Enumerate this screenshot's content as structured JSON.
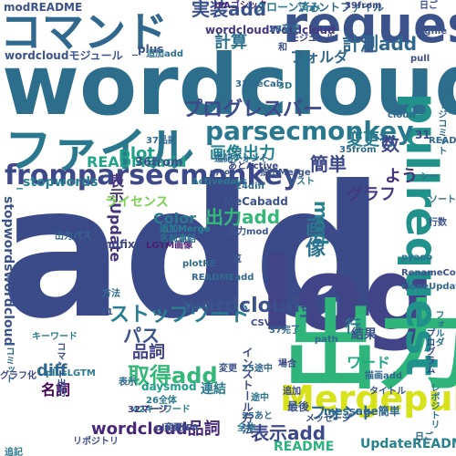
{
  "words": [
    {
      "text": "add",
      "color": "#3b4b8a"
    },
    {
      "text": "wordcloud",
      "color": "#2c6e8c"
    },
    {
      "text": "log",
      "color": "#414487"
    },
    {
      "text": "出力",
      "color": "#2fb47c"
    },
    {
      "text": "request",
      "color": "#3b528b"
    },
    {
      "text": "pullrequest",
      "color": "#21918c"
    },
    {
      "text": "ファイル",
      "color": "#2a788e"
    },
    {
      "text": "コマンド",
      "color": "#31688e"
    },
    {
      "text": "Mergepull",
      "color": "#d8e219"
    },
    {
      "text": "fromparsecmonkey",
      "color": "#3e4989"
    },
    {
      "text": "parsecmonkey",
      "color": "#2a788e"
    },
    {
      "text": "プログレスバー",
      "color": "#3e4a89"
    },
    {
      "text": "ストップワード",
      "color": "#287d8e"
    },
    {
      "text": "wordcloud_",
      "color": "#3b528b"
    },
    {
      "text": "取得add",
      "color": "#35b779"
    },
    {
      "text": "表示add",
      "color": "#3e4989"
    },
    {
      "text": "wordcloud品詞",
      "color": "#482878"
    },
    {
      "text": "画像出力",
      "color": "#26828e"
    },
    {
      "text": "実装add",
      "color": "#3b528b"
    },
    {
      "text": "計測add",
      "color": "#31688e"
    },
    {
      "text": "README",
      "color": "#2db27d"
    },
    {
      "text": "READMEadd",
      "color": "#20a386"
    },
    {
      "text": "modREADME",
      "color": "#3b528b"
    },
    {
      "text": "フォント",
      "color": "#31688e"
    },
    {
      "text": "変更行",
      "color": "#287d8e"
    },
    {
      "text": "グラフ",
      "color": "#443a83"
    },
    {
      "text": "簡単",
      "color": "#3e4989"
    },
    {
      "text": "plot",
      "color": "#1fa088"
    },
    {
      "text": "パス",
      "color": "#3b528b"
    },
    {
      "text": "品詞",
      "color": "#404688"
    },
    {
      "text": "名詞",
      "color": "#440154"
    },
    {
      "text": "diff",
      "color": "#31688e"
    },
    {
      "text": "mod",
      "color": "#26828e"
    },
    {
      "text": "数",
      "color": "#3e4a89"
    },
    {
      "text": "よう",
      "color": "#46337e"
    },
    {
      "text": "計算",
      "color": "#2c728e"
    },
    {
      "text": "画像",
      "color": "#2c728e"
    },
    {
      "text": "行",
      "color": "#2a788e"
    },
    {
      "text": "フォルダ",
      "color": "#31688e"
    },
    {
      "text": "表示Update",
      "color": "#46337e"
    },
    {
      "text": "出力add",
      "color": "#35b779"
    },
    {
      "text": "UpdateREADME",
      "color": "#26828e"
    },
    {
      "text": "Color",
      "color": "#2a788e"
    },
    {
      "text": "ワード",
      "color": "#22a884"
    },
    {
      "text": "_stopwords",
      "color": "#287d8e"
    },
    {
      "text": "stopwordswordcloud",
      "color": "#3b528b"
    },
    {
      "text": "wordcloudWordcloud",
      "color": "#453781"
    },
    {
      "text": "wordcloudモジュール",
      "color": "#3b528b"
    },
    {
      "text": "フォントファイル",
      "color": "#31688e"
    },
    {
      "text": "IPAゴシック",
      "color": "#472d7b"
    },
    {
      "text": "LGTM画像",
      "color": "#481f70"
    },
    {
      "text": "ライセンス",
      "color": "#7ad151"
    },
    {
      "text": "36from",
      "color": "#3b528b"
    },
    {
      "text": "Activedays",
      "color": "#2a788e"
    },
    {
      "text": "33MeCab",
      "color": "#31688e"
    },
    {
      "text": "抽出Merge",
      "color": "#3b528b"
    },
    {
      "text": "リスト",
      "color": "#2c728e"
    },
    {
      "text": "追加Merge",
      "color": "#26828e"
    },
    {
      "text": "キーワード",
      "color": "#2a788e"
    },
    {
      "text": "42キーワード",
      "color": "#287d8e"
    },
    {
      "text": "メッセージ",
      "color": "#3b528b"
    },
    {
      "text": "コミット",
      "color": "#31688e"
    },
    {
      "text": "plusLGTM",
      "color": "#2a788e"
    },
    {
      "text": "mdfix",
      "color": "#3e4989"
    },
    {
      "text": "MeCabadd",
      "color": "#3b528b"
    },
    {
      "text": "24diff",
      "color": "#31688e"
    },
    {
      "text": "名前連結",
      "color": "#2c728e"
    },
    {
      "text": "37完了",
      "color": "#31688e"
    },
    {
      "text": "完了名前",
      "color": "#3e4989"
    },
    {
      "text": "message簡単",
      "color": "#31688e"
    },
    {
      "text": "32マージ",
      "color": "#453781"
    },
    {
      "text": "変更IPA",
      "color": "#3b528b"
    },
    {
      "text": "daysmod",
      "color": "#1f9e89"
    },
    {
      "text": "26全体",
      "color": "#2a788e"
    },
    {
      "text": "25あと",
      "color": "#31688e"
    },
    {
      "text": "39from",
      "color": "#3e4989"
    },
    {
      "text": "日ご",
      "color": "#3b528b"
    },
    {
      "text": "クローン済み",
      "color": "#2a788e"
    },
    {
      "text": "_plus",
      "color": "#3b528b"
    },
    {
      "text": "28変更",
      "color": "#31688e"
    },
    {
      "text": "マージコミット",
      "color": "#31688e"
    },
    {
      "text": "インストール方法",
      "color": "#3e4989"
    },
    {
      "text": "結果",
      "color": "#3b528b"
    },
    {
      "text": "連結",
      "color": "#2a788e"
    },
    {
      "text": "方法",
      "color": "#31688e"
    },
    {
      "text": "追加",
      "color": "#3e4989"
    },
    {
      "text": "最後",
      "color": "#3b528b"
    },
    {
      "text": "途中",
      "color": "#2c728e"
    },
    {
      "text": "path",
      "color": "#31688e"
    },
    {
      "text": "CSV",
      "color": "#3e4989"
    },
    {
      "text": "pyaoo",
      "color": "#3b528b"
    },
    {
      "text": "3D",
      "color": "#2a788e"
    },
    {
      "text": "31",
      "color": "#3e4989"
    },
    {
      "text": "和",
      "color": "#3b528b"
    },
    {
      "text": "35from",
      "color": "#31688e"
    },
    {
      "text": "37品詞",
      "color": "#31688e"
    },
    {
      "text": "21",
      "color": "#3b528b"
    },
    {
      "text": "25途中",
      "color": "#31688e"
    },
    {
      "text": "モジュール",
      "color": "#3e4989"
    },
    {
      "text": "シー",
      "color": "#2c728e"
    },
    {
      "text": "コマンド出力",
      "color": "#3b528b"
    },
    {
      "text": "出力パス",
      "color": "#31688e"
    },
    {
      "text": "追加add",
      "color": "#2c728e"
    },
    {
      "text": "あとActive",
      "color": "#3e4989"
    },
    {
      "text": "cloud",
      "color": "#31688e"
    },
    {
      "text": "追記フォント",
      "color": "#31688e"
    },
    {
      "text": "一覧",
      "color": "#3b528b"
    },
    {
      "text": "全体",
      "color": "#2a788e"
    },
    {
      "text": "表示",
      "color": "#31688e"
    },
    {
      "text": "変更",
      "color": "#3b528b"
    },
    {
      "text": "場合",
      "color": "#3e4989"
    },
    {
      "text": "plotRE",
      "color": "#31688e"
    },
    {
      "text": "READMEadd",
      "color": "#31688e"
    },
    {
      "text": "プログラム",
      "color": "#3e4989"
    },
    {
      "text": "レポジトリ",
      "color": "#2c728e"
    },
    {
      "text": "タイトル",
      "color": "#3b528b"
    },
    {
      "text": "描画add",
      "color": "#31688e"
    },
    {
      "text": "グラフ化",
      "color": "#3e4989"
    },
    {
      "text": "追記",
      "color": "#2a788e"
    },
    {
      "text": "RenameColor",
      "color": "#3b528b"
    },
    {
      "text": "cloneUpdate",
      "color": "#31688e"
    },
    {
      "text": "リポジトリ",
      "color": "#3e4989"
    },
    {
      "text": "出力mod",
      "color": "#3b528b"
    },
    {
      "text": "日ご",
      "color": "#31688e"
    },
    {
      "text": "pyaoo",
      "color": "#2c728e"
    },
    {
      "text": "plotlib",
      "color": "#3e4989"
    },
    {
      "text": "logfile",
      "color": "#3b528b"
    },
    {
      "text": "ソート",
      "color": "#31688e"
    },
    {
      "text": "行数",
      "color": "#3b528b"
    },
    {
      "text": "pull",
      "color": "#3e4989"
    },
    {
      "text": "フォルダ",
      "color": "#2c728e"
    },
    {
      "text": "README",
      "color": "#31688e"
    },
    {
      "text": "log",
      "color": "#3b528b"
    },
    {
      "text": "名詞",
      "color": "#3e4989"
    }
  ]
}
